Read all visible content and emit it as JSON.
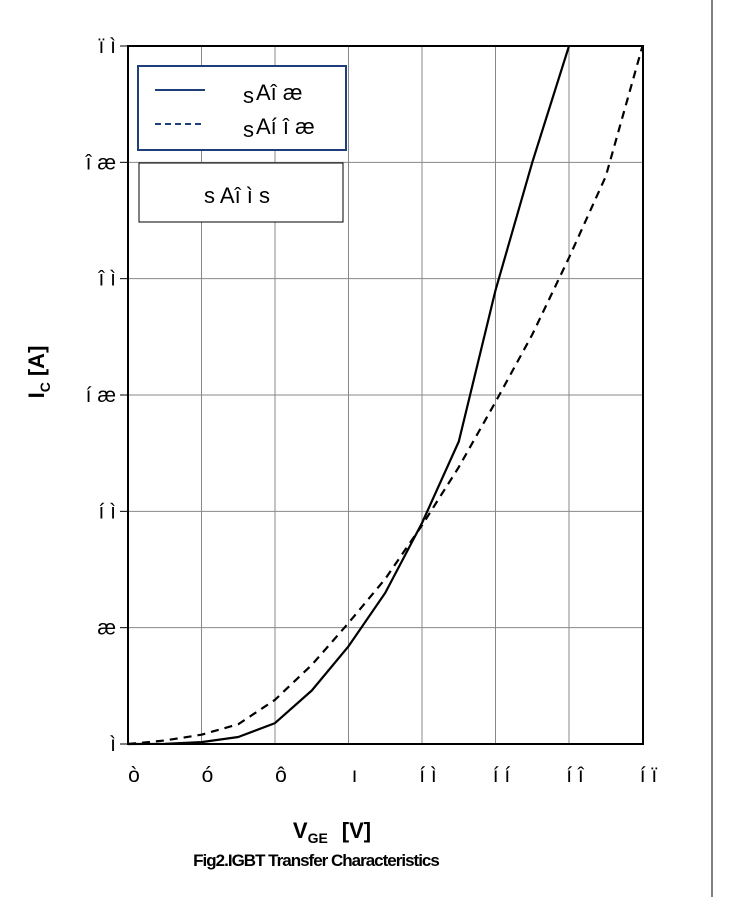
{
  "chart_data": {
    "type": "line",
    "title": "",
    "caption": "Fig2.IGBT Transfer Characteristics",
    "xlabel": {
      "main": "V",
      "sub": "GE",
      "unit": "[V]"
    },
    "ylabel": {
      "main": "I",
      "sub": "C",
      "unit": "[A]"
    },
    "xlim": [
      6,
      13
    ],
    "ylim": [
      0,
      30
    ],
    "grid": true,
    "x_ticks": [
      6,
      7,
      8,
      9,
      10,
      11,
      12,
      13
    ],
    "x_tick_labels": [
      "ò",
      "ó",
      "ô",
      "ı",
      "í ì",
      "í í",
      "í î",
      "í ï"
    ],
    "y_ticks": [
      0,
      5,
      10,
      15,
      20,
      25,
      30
    ],
    "y_tick_labels": [
      "ì",
      "æ",
      "í ì",
      "í æ",
      "î ì",
      "î æ",
      "ï ì"
    ],
    "legend": {
      "position": "top-left",
      "entries": [
        {
          "style": "solid",
          "label_small": "s",
          "label": "Aî æ"
        },
        {
          "style": "dashed",
          "label_small": "s",
          "label": "Aí î æ"
        }
      ],
      "note": "s Aî ì s"
    },
    "series": [
      {
        "style": "solid",
        "x": [
          6.0,
          6.5,
          7.0,
          7.5,
          8.0,
          8.5,
          9.0,
          9.5,
          10.0,
          10.5,
          11.0,
          11.5,
          12.0
        ],
        "y": [
          0.0,
          0.01,
          0.08,
          0.3,
          0.9,
          2.3,
          4.2,
          6.5,
          9.5,
          13.0,
          19.5,
          25.0,
          30.0
        ]
      },
      {
        "style": "dashed",
        "x": [
          6.0,
          6.5,
          7.0,
          7.5,
          8.0,
          8.5,
          9.0,
          9.5,
          10.0,
          10.5,
          11.0,
          11.5,
          12.0,
          12.5,
          13.0
        ],
        "y": [
          0.0,
          0.15,
          0.4,
          0.85,
          1.9,
          3.4,
          5.2,
          7.1,
          9.4,
          11.9,
          14.7,
          17.6,
          20.9,
          24.4,
          30.0
        ]
      }
    ]
  }
}
